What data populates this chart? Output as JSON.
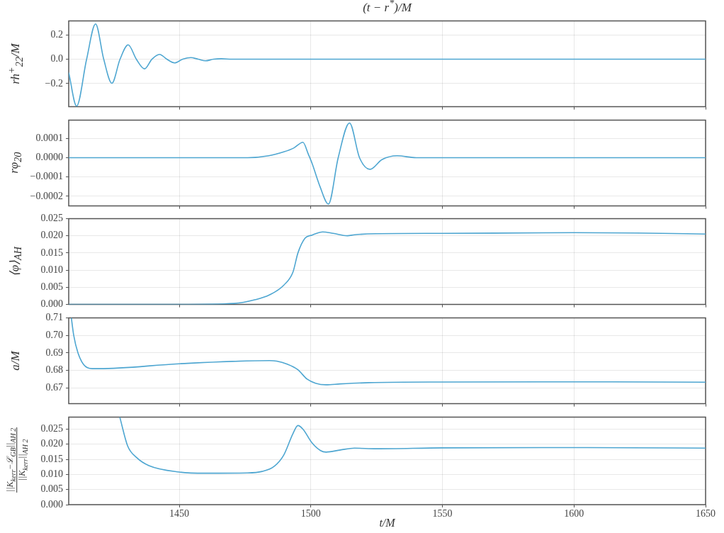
{
  "chart_data": [
    {
      "type": "line",
      "title": "(t − r$^{*}$)/M",
      "ylabel": "rh$^{+}$$_{22}$/M",
      "xlim": [
        1408,
        1650
      ],
      "xticks": [
        1450,
        1500,
        1550,
        1600,
        1650
      ],
      "ylim": [
        -0.39,
        0.315
      ],
      "yticks": [
        {
          "value": -0.2,
          "label": "−0.2"
        },
        {
          "value": 0,
          "label": "0.0"
        },
        {
          "value": 0.2,
          "label": "0.2"
        }
      ],
      "grid": true,
      "tick_labels": "y",
      "series": [
        {
          "color": "#4ea6d1",
          "x": [
            1408,
            1411,
            1414.8,
            1418.2,
            1421.3,
            1424.4,
            1427.5,
            1430.6,
            1433.7,
            1436.8,
            1439.6,
            1442.5,
            1445.3,
            1448.2,
            1451.3,
            1454.4,
            1457.2,
            1460,
            1463,
            1466,
            1470,
            1500,
            1550,
            1600,
            1650
          ],
          "values": [
            -0.11,
            -0.385,
            0,
            0.29,
            0,
            -0.197,
            0,
            0.118,
            0,
            -0.079,
            0,
            0.04,
            0,
            -0.03,
            0,
            0.013,
            0,
            -0.013,
            0,
            0.004,
            0,
            0,
            0,
            0,
            0
          ]
        }
      ]
    },
    {
      "type": "line",
      "ylabel": "rφ$_{20}$",
      "xlim": [
        1408,
        1650
      ],
      "xticks": [
        1450,
        1500,
        1550,
        1600,
        1650
      ],
      "ylim": [
        -0.00025,
        0.000195
      ],
      "yticks": [
        {
          "value": -0.0002,
          "label": "−0.0002"
        },
        {
          "value": -0.0001,
          "label": "−0.0001"
        },
        {
          "value": 0,
          "label": "0.0000"
        },
        {
          "value": 0.0001,
          "label": "0.0001"
        }
      ],
      "grid": true,
      "tick_labels": "y",
      "series": [
        {
          "color": "#4ea6d1",
          "x": [
            1408,
            1450,
            1470,
            1476,
            1484,
            1489.7,
            1493.5,
            1497,
            1499,
            1500.5,
            1503.5,
            1506.7,
            1510.4,
            1514.7,
            1518.5,
            1522.5,
            1527,
            1532.8,
            1540,
            1560,
            1600,
            1650
          ],
          "values": [
            0,
            0,
            0,
            0,
            1e-05,
            3e-05,
            5e-05,
            8e-05,
            2e-05,
            -3e-05,
            -0.00015,
            -0.00024,
            0,
            0.00018,
            0,
            -6e-05,
            -1e-05,
            1e-05,
            0,
            0,
            0,
            0
          ]
        }
      ]
    },
    {
      "type": "line",
      "ylabel": "⟨φ⟩$_{AH}$",
      "xlim": [
        1408,
        1650
      ],
      "xticks": [
        1450,
        1500,
        1550,
        1600,
        1650
      ],
      "ylim": [
        0,
        0.025
      ],
      "yticks": [
        {
          "value": 0,
          "label": "0.000"
        },
        {
          "value": 0.005,
          "label": "0.005"
        },
        {
          "value": 0.01,
          "label": "0.010"
        },
        {
          "value": 0.015,
          "label": "0.015"
        },
        {
          "value": 0.02,
          "label": "0.020"
        },
        {
          "value": 0.025,
          "label": "0.025"
        }
      ],
      "grid": true,
      "tick_labels": "y",
      "series": [
        {
          "color": "#4ea6d1",
          "x": [
            1408,
            1450,
            1470.8,
            1478.9,
            1484.3,
            1489.7,
            1493.2,
            1495.1,
            1497.8,
            1500.5,
            1504.5,
            1508.5,
            1513.9,
            1516.6,
            1524.7,
            1550,
            1600,
            1624,
            1650
          ],
          "values": [
            0,
            0,
            0.0003,
            0.0014,
            0.0028,
            0.0056,
            0.0094,
            0.015,
            0.0193,
            0.0202,
            0.0211,
            0.0207,
            0.02,
            0.0203,
            0.0206,
            0.0207,
            0.0209,
            0.0208,
            0.0205
          ]
        }
      ]
    },
    {
      "type": "line",
      "ylabel": "a/M",
      "xlim": [
        1408,
        1650
      ],
      "xticks": [
        1450,
        1500,
        1550,
        1600,
        1650
      ],
      "ylim": [
        0.661,
        0.71
      ],
      "yticks": [
        {
          "value": 0.67,
          "label": "0.67"
        },
        {
          "value": 0.68,
          "label": "0.68"
        },
        {
          "value": 0.69,
          "label": "0.69"
        },
        {
          "value": 0.7,
          "label": "0.70"
        },
        {
          "value": 0.71,
          "label": "0.71"
        }
      ],
      "grid": true,
      "tick_labels": "y",
      "series": [
        {
          "color": "#4ea6d1",
          "x": [
            1409,
            1409.9,
            1411.5,
            1413.7,
            1416.9,
            1419.6,
            1450,
            1484.3,
            1487,
            1491,
            1495,
            1498.6,
            1501.8,
            1505.8,
            1511.2,
            1522,
            1550,
            1600,
            1650
          ],
          "values": [
            0.71,
            0.7,
            0.69,
            0.6833,
            0.681,
            0.681,
            0.6838,
            0.6856,
            0.6853,
            0.6836,
            0.6805,
            0.675,
            0.6727,
            0.6718,
            0.6723,
            0.673,
            0.6734,
            0.6735,
            0.6733
          ]
        }
      ]
    },
    {
      "type": "line",
      "ylabel": "||K$_{kerr}$−ℒ$_{GB}$||$_{AH 2}$\n||K$_{kerr}$||$_{AH 2}$",
      "xlabel": "t/M",
      "xlim": [
        1408,
        1650
      ],
      "xticks": [
        1450,
        1500,
        1550,
        1600,
        1650
      ],
      "ylim": [
        0,
        0.029
      ],
      "yticks": [
        {
          "value": 0,
          "label": "0.000"
        },
        {
          "value": 0.005,
          "label": "0.005"
        },
        {
          "value": 0.01,
          "label": "0.010"
        },
        {
          "value": 0.015,
          "label": "0.015"
        },
        {
          "value": 0.02,
          "label": "0.020"
        },
        {
          "value": 0.025,
          "label": "0.025"
        }
      ],
      "grid": true,
      "series": [
        {
          "color": "#4ea6d1",
          "x": [
            1427.4,
            1430.4,
            1433.9,
            1438.5,
            1450,
            1459.8,
            1476,
            1481.5,
            1486.1,
            1489.7,
            1493.2,
            1495.1,
            1497,
            1500.5,
            1503.7,
            1505.8,
            1511.2,
            1516.6,
            1524.7,
            1550,
            1600,
            1650
          ],
          "values": [
            0.029,
            0.0194,
            0.0155,
            0.0129,
            0.0108,
            0.0104,
            0.0105,
            0.011,
            0.0127,
            0.0164,
            0.0235,
            0.0262,
            0.025,
            0.0204,
            0.0179,
            0.0174,
            0.0181,
            0.0187,
            0.0185,
            0.0188,
            0.0189,
            0.0187
          ]
        }
      ]
    }
  ]
}
